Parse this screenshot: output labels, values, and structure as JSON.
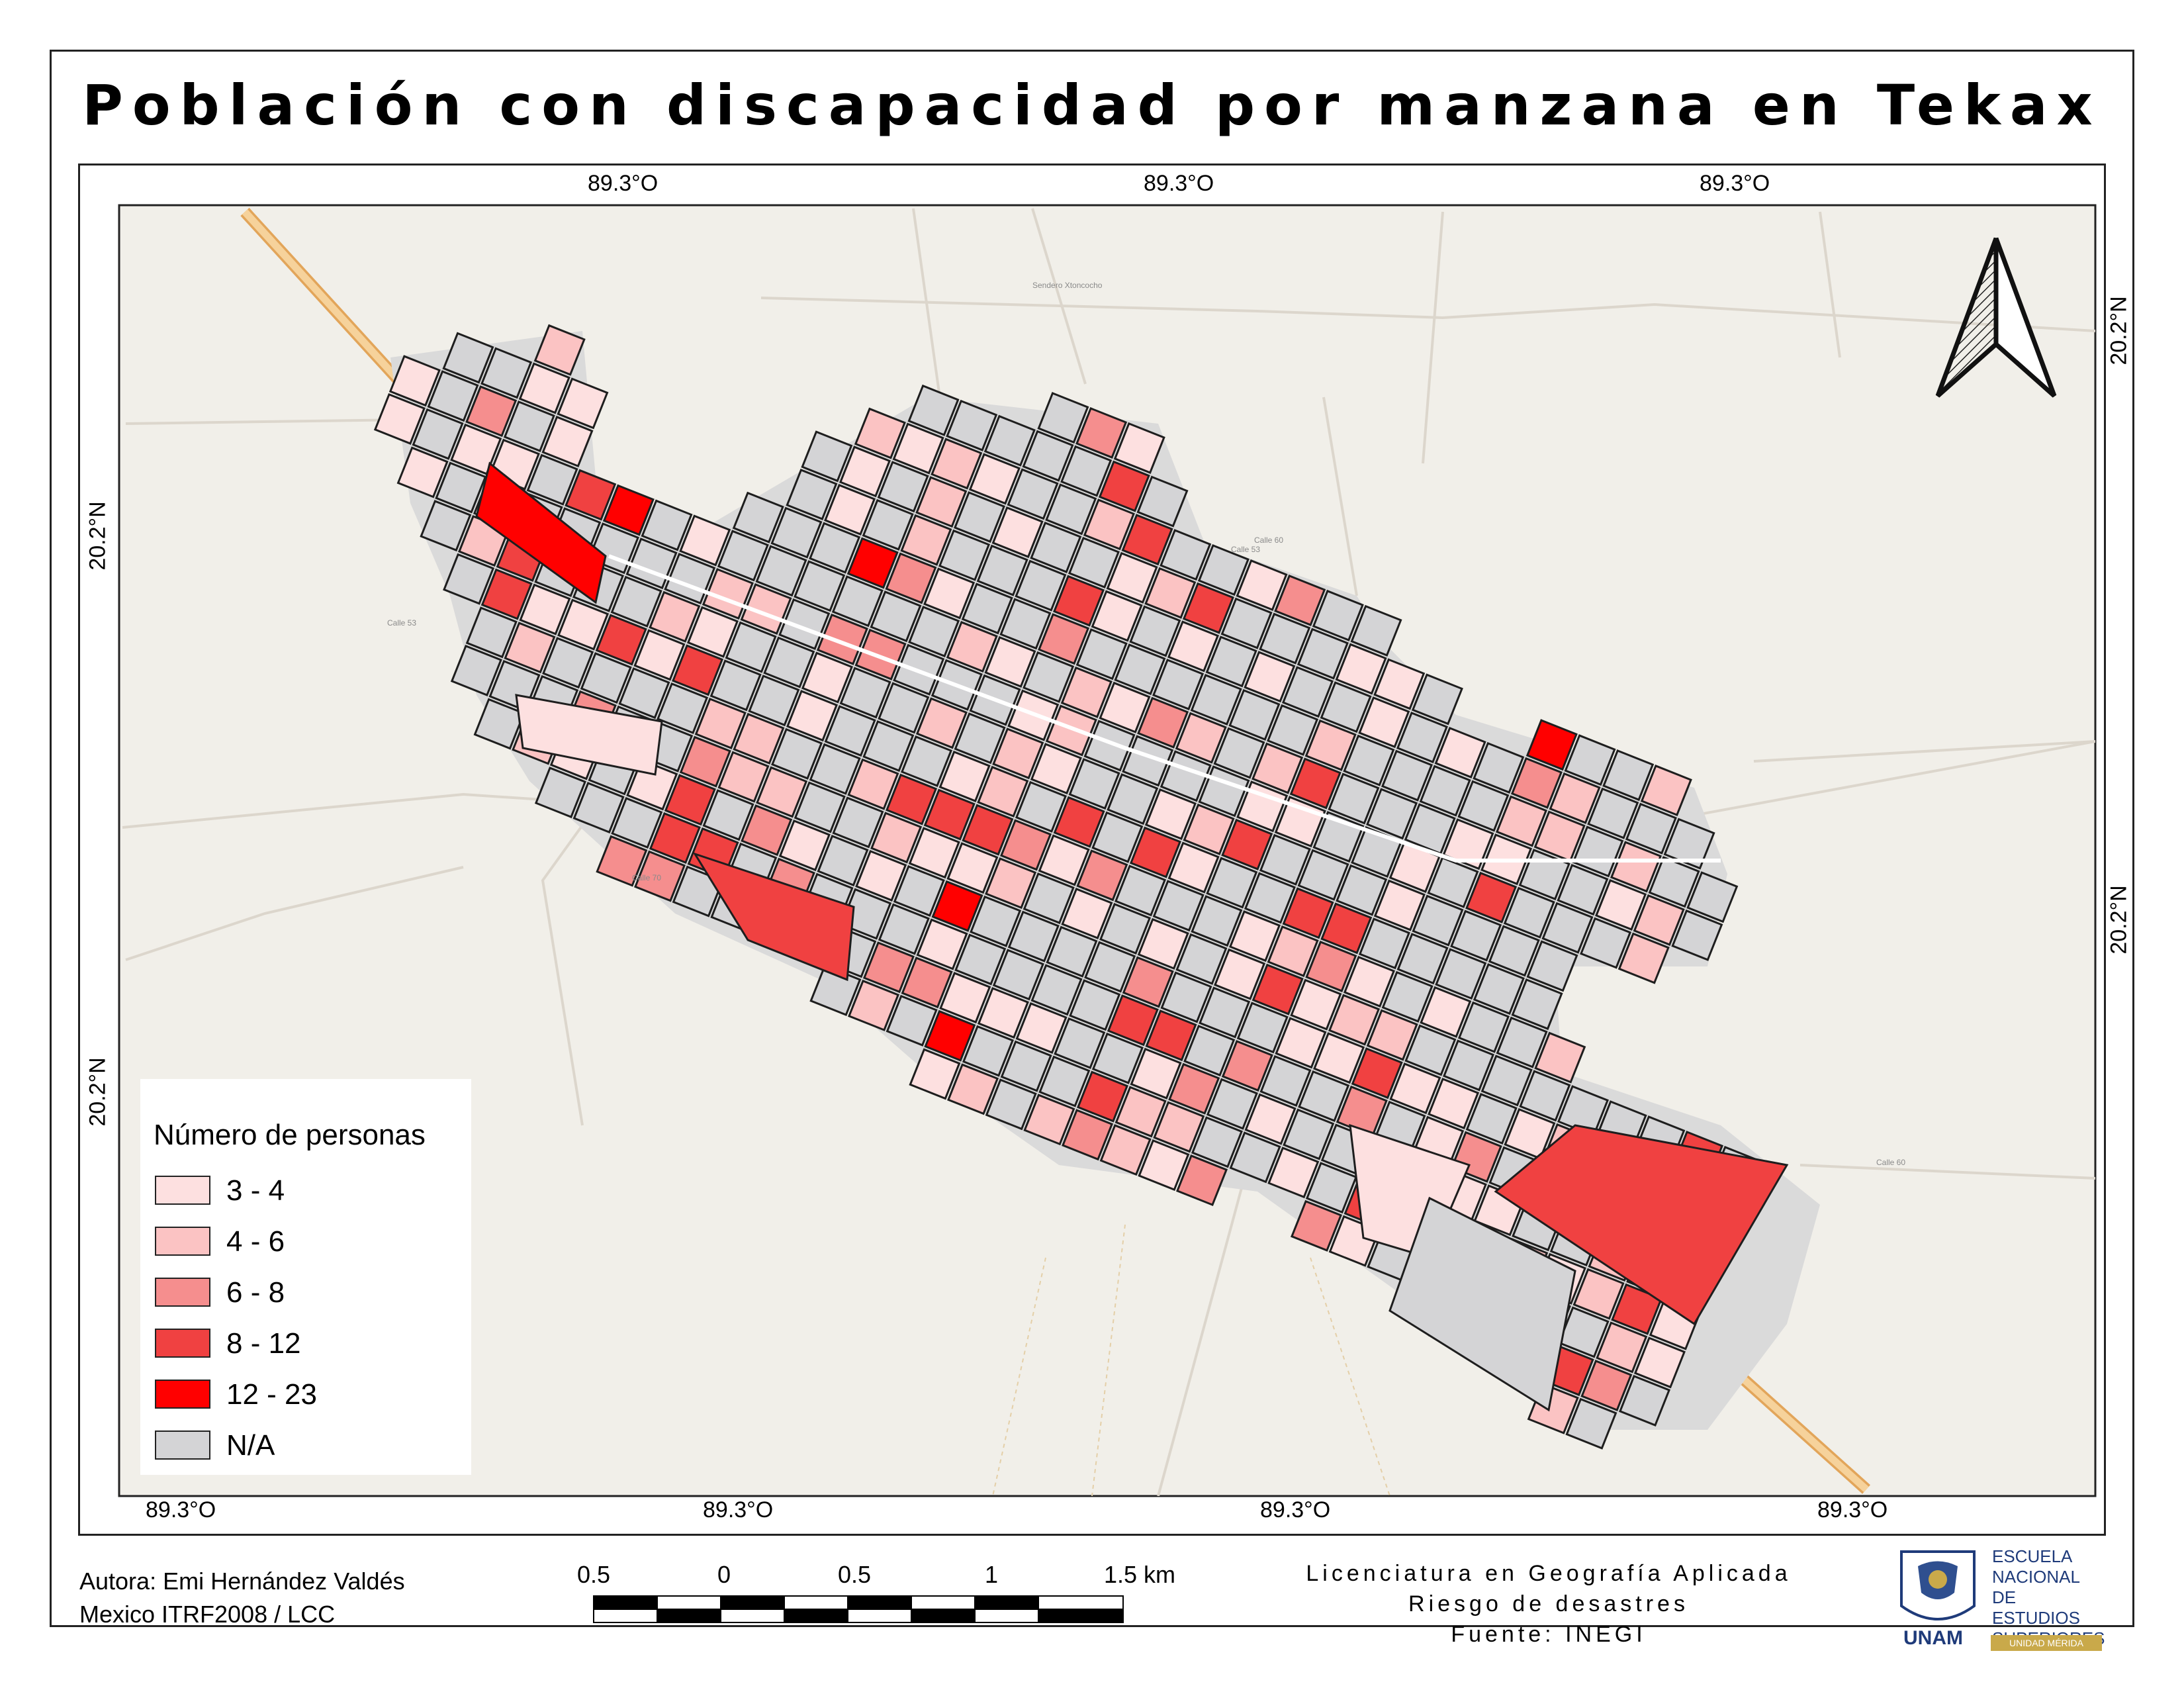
{
  "title": "Población con discapacidad por manzana en Tekax",
  "graticule": {
    "top": [
      "89.3°O",
      "89.3°O",
      "89.3°O"
    ],
    "bottom": [
      "89.3°O",
      "89.3°O",
      "89.3°O",
      "89.3°O"
    ],
    "left": [
      "20.2°N",
      "20.2°N"
    ],
    "right": [
      "20.2°N",
      "20.2°N"
    ]
  },
  "map_labels": {
    "road_1": "Sendero Xtoncocho",
    "road_2": "Calle 53",
    "road_3": "Calle 70",
    "road_4": "Calle 60",
    "road_5": "Calle 53",
    "road_6": "Calle 60"
  },
  "legend": {
    "title": "Número de personas",
    "classes": [
      {
        "label": "3 - 4",
        "color": "#fde0e0"
      },
      {
        "label": "4 - 6",
        "color": "#fbc3c3"
      },
      {
        "label": "6 - 8",
        "color": "#f58e8e"
      },
      {
        "label": "8 - 12",
        "color": "#f04141"
      },
      {
        "label": "12 - 23",
        "color": "#ff0000"
      },
      {
        "label": "N/A",
        "color": "#d4d4d6"
      }
    ]
  },
  "footer": {
    "author": "Autora: Emi Hernández Valdés",
    "crs": "Mexico ITRF2008 / LCC",
    "program": "Licenciatura en Geografía Aplicada",
    "course": "Riesgo de desastres",
    "source": "Fuente: INEGI"
  },
  "scalebar": {
    "labels": [
      "0.5",
      "0",
      "0.5",
      "1",
      "1.5 km"
    ]
  },
  "logo": {
    "unam_label": "UNAM",
    "school_lines": [
      "ESCUELA",
      "NACIONAL DE",
      "ESTUDIOS",
      "SUPERIORES"
    ],
    "unit": "UNIDAD MÉRIDA"
  },
  "colors": {
    "background_land": "#f1efe9",
    "road_main": "#f2c88a",
    "road_minor": "#ffffff",
    "block_stroke": "#1e1e1e"
  }
}
